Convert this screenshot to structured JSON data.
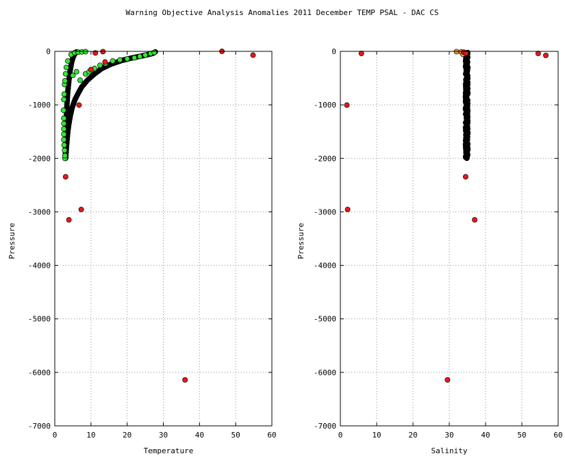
{
  "figure": {
    "title": "Warning Objective Analysis Anomalies 2011 December TEMP PSAL - DAC CS"
  },
  "colors": {
    "background": "#ffffff",
    "good": "#000000",
    "flagged_green": "#33e633",
    "flagged_orange": "#e69a2e",
    "anomaly_red": "#e61a1a",
    "grid": "#8a8a8a"
  },
  "chart_data": [
    {
      "type": "scatter",
      "xlabel": "Temperature",
      "ylabel": "Pressure",
      "xlim": [
        0,
        60
      ],
      "ylim": [
        -7000,
        0
      ],
      "xticks": [
        0,
        10,
        20,
        30,
        40,
        50,
        60
      ],
      "yticks": [
        0,
        -1000,
        -2000,
        -3000,
        -4000,
        -5000,
        -6000,
        -7000
      ],
      "grid": true,
      "series": [
        {
          "color": "#000000",
          "curves": [
            {
              "x": [
                3.0,
                3.1,
                3.2,
                3.4,
                3.6,
                3.9,
                4.3,
                4.8,
                5.6,
                6.5,
                7.5,
                9.0,
                11.0,
                13.0,
                15.5,
                18.5,
                21.5,
                24.5,
                27.0,
                27.8
              ],
              "y": [
                -2000,
                -1900,
                -1800,
                -1650,
                -1500,
                -1350,
                -1200,
                -1050,
                -900,
                -780,
                -660,
                -540,
                -420,
                -320,
                -240,
                -170,
                -120,
                -80,
                -40,
                -10
              ]
            },
            {
              "x": [
                2.9,
                3.0,
                3.1,
                3.2,
                3.4,
                3.6,
                3.9,
                4.2,
                4.6,
                5.0,
                5.5,
                6.0
              ],
              "y": [
                -1950,
                -1700,
                -1450,
                -1200,
                -950,
                -750,
                -550,
                -380,
                -220,
                -120,
                -50,
                -10
              ]
            }
          ]
        },
        {
          "color": "#33e633",
          "points": [
            [
              2.8,
              -2000
            ],
            [
              2.8,
              -1950
            ],
            [
              2.7,
              -1850
            ],
            [
              2.6,
              -1750
            ],
            [
              2.5,
              -1650
            ],
            [
              2.5,
              -1550
            ],
            [
              2.5,
              -1450
            ],
            [
              2.5,
              -1350
            ],
            [
              2.5,
              -1250
            ],
            [
              2.4,
              -1100
            ],
            [
              2.5,
              -900
            ],
            [
              2.6,
              -800
            ],
            [
              2.7,
              -620
            ],
            [
              2.8,
              -550
            ],
            [
              3.0,
              -420
            ],
            [
              3.2,
              -300
            ],
            [
              3.6,
              -180
            ],
            [
              4.5,
              -60
            ],
            [
              5.5,
              -25
            ],
            [
              6.5,
              -15
            ],
            [
              7.5,
              -10
            ],
            [
              8.5,
              -5
            ],
            [
              5.0,
              -450
            ],
            [
              6.0,
              -380
            ],
            [
              7.0,
              -540
            ],
            [
              8.5,
              -420
            ],
            [
              9.5,
              -380
            ],
            [
              11.0,
              -320
            ],
            [
              12.5,
              -260
            ],
            [
              14.0,
              -230
            ],
            [
              16.0,
              -180
            ],
            [
              18.0,
              -160
            ],
            [
              20.0,
              -140
            ],
            [
              22.0,
              -120
            ],
            [
              23.5,
              -95
            ],
            [
              25.0,
              -70
            ],
            [
              26.5,
              -40
            ],
            [
              27.5,
              -20
            ]
          ]
        },
        {
          "color": "#e61a1a",
          "points": [
            [
              11.2,
              -30
            ],
            [
              13.3,
              -5
            ],
            [
              13.9,
              -200
            ],
            [
              10.0,
              -340
            ],
            [
              6.7,
              -1005
            ],
            [
              3.0,
              -2345
            ],
            [
              7.3,
              -2955
            ],
            [
              3.9,
              -3150
            ],
            [
              46.2,
              0
            ],
            [
              54.8,
              -70
            ],
            [
              36.0,
              -6140
            ]
          ]
        }
      ]
    },
    {
      "type": "scatter",
      "xlabel": "Salinity",
      "ylabel": "Pressure",
      "xlim": [
        0,
        60
      ],
      "ylim": [
        -7000,
        0
      ],
      "xticks": [
        0,
        10,
        20,
        30,
        40,
        50,
        60
      ],
      "yticks": [
        0,
        -1000,
        -2000,
        -3000,
        -4000,
        -5000,
        -6000,
        -7000
      ],
      "grid": true,
      "series": [
        {
          "color": "#000000",
          "band": {
            "x_center": 34.8,
            "x_spread": 0.35,
            "y_top": -20,
            "y_bottom": -2000
          }
        },
        {
          "color": "#e69a2e",
          "points": [
            [
              32.0,
              -5
            ],
            [
              33.3,
              -10
            ],
            [
              33.8,
              -55
            ]
          ]
        },
        {
          "color": "#e61a1a",
          "points": [
            [
              5.8,
              -40
            ],
            [
              34.0,
              -15
            ],
            [
              34.6,
              -35
            ],
            [
              1.8,
              -1005
            ],
            [
              34.5,
              -2345
            ],
            [
              2.0,
              -2955
            ],
            [
              37.0,
              -3150
            ],
            [
              29.5,
              -6140
            ],
            [
              54.5,
              -40
            ],
            [
              56.6,
              -75
            ]
          ]
        }
      ]
    }
  ]
}
